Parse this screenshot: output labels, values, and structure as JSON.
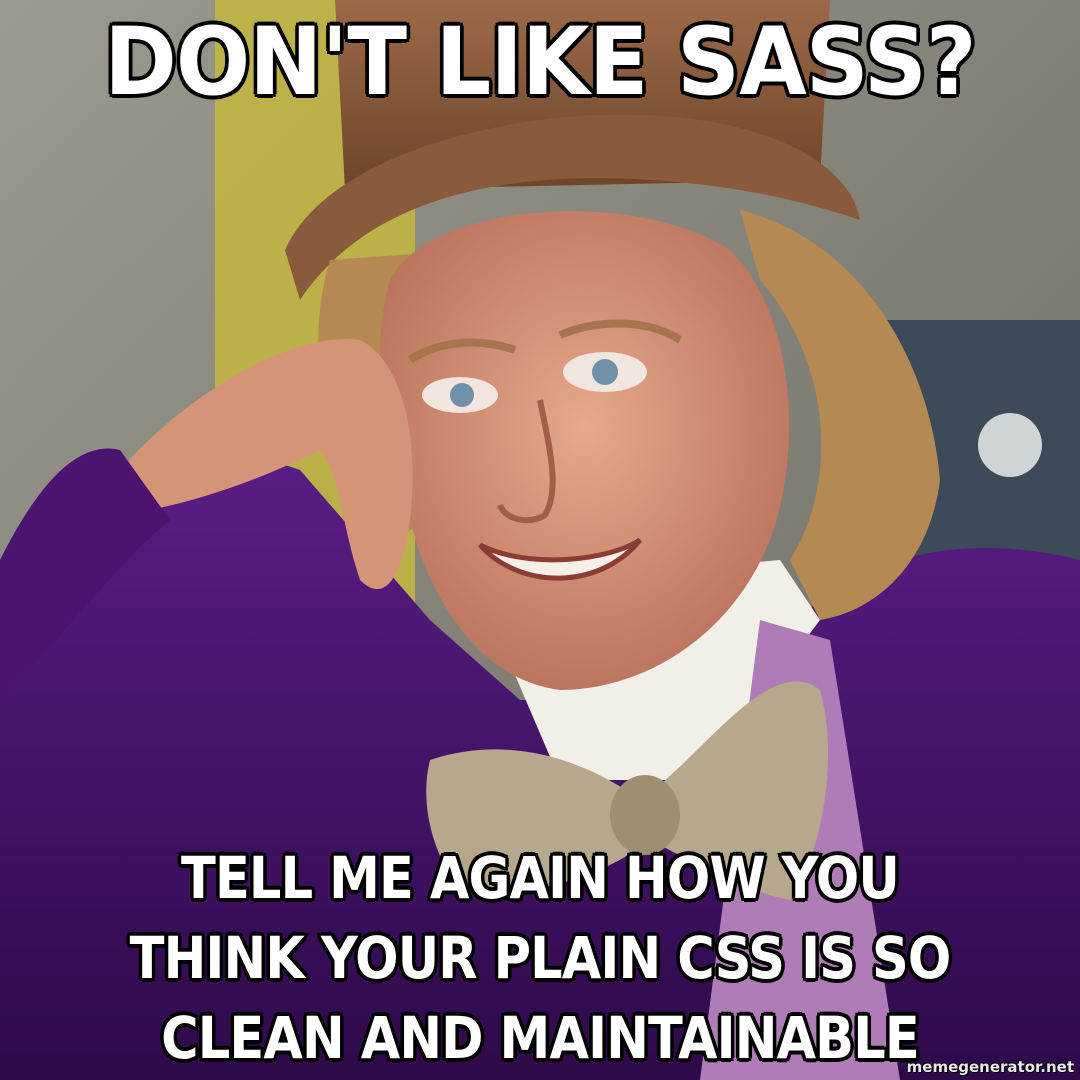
{
  "meme": {
    "top_text": "DON'T LIKE SASS?",
    "bottom_text": "TELL ME AGAIN HOW YOU THINK YOUR PLAIN CSS IS SO CLEAN AND MAINTAINABLE",
    "watermark": "memegenerator.net"
  },
  "colors": {
    "text": "#ffffff",
    "text_outline": "#000000",
    "jacket": "#4a1470",
    "hat": "#8a5a3c",
    "hair": "#b58a52",
    "skin": "#d9977a",
    "bow_tie": "#b5a58a",
    "background_wall": "#8c8a7a",
    "background_yellow": "#c9b93a"
  },
  "scene": {
    "subject": "smirking man in top hat and purple velvet jacket, head resting on hand"
  }
}
